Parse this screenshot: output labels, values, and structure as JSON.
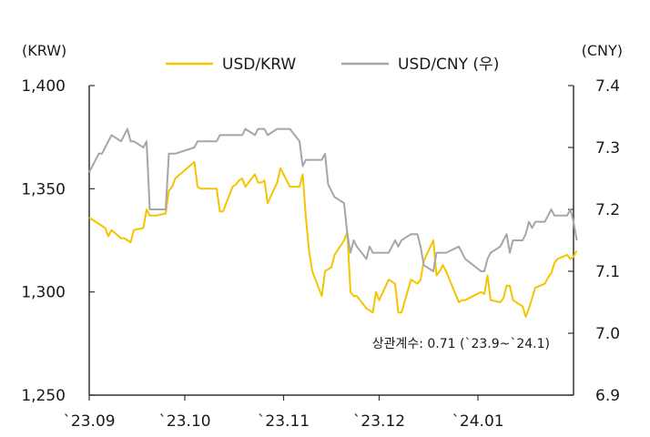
{
  "chart_data": {
    "type": "line",
    "left_axis": {
      "unit": "(KRW)",
      "ylim": [
        1250,
        1400
      ],
      "ticks": [
        1250,
        1300,
        1350,
        1400
      ],
      "tick_labels": [
        "1,250",
        "1,300",
        "1,350",
        "1,400"
      ]
    },
    "right_axis": {
      "unit": "(CNY)",
      "ylim": [
        6.9,
        7.4
      ],
      "ticks": [
        6.9,
        7.0,
        7.1,
        7.2,
        7.3,
        7.4
      ],
      "tick_labels": [
        "6.9",
        "7.0",
        "7.1",
        "7.2",
        "7.3",
        "7.4"
      ]
    },
    "x_tick_labels": [
      "`23.09",
      "`23.10",
      "`23.11",
      "`23.12",
      "`24.01"
    ],
    "x_tick_values": [
      "2023-09-01",
      "2023-10-01",
      "2023-11-01",
      "2023-12-01",
      "2024-01-01"
    ],
    "xlim": [
      "2023-09-01",
      "2024-01-31"
    ],
    "annotation": "상관계수: 0.71 (`23.9~`24.1)",
    "series": [
      {
        "name": "USD/KRW",
        "axis": "left",
        "color": "#f5c400",
        "points": [
          [
            "2023-09-01",
            1336
          ],
          [
            "2023-09-04",
            1333
          ],
          [
            "2023-09-05",
            1332
          ],
          [
            "2023-09-06",
            1331
          ],
          [
            "2023-09-07",
            1327
          ],
          [
            "2023-09-08",
            1330
          ],
          [
            "2023-09-11",
            1326
          ],
          [
            "2023-09-12",
            1326
          ],
          [
            "2023-09-13",
            1325
          ],
          [
            "2023-09-14",
            1324
          ],
          [
            "2023-09-15",
            1330
          ],
          [
            "2023-09-18",
            1331
          ],
          [
            "2023-09-19",
            1340
          ],
          [
            "2023-09-20",
            1337
          ],
          [
            "2023-09-21",
            1337
          ],
          [
            "2023-09-22",
            1337
          ],
          [
            "2023-09-25",
            1338
          ],
          [
            "2023-09-26",
            1349
          ],
          [
            "2023-09-27",
            1351
          ],
          [
            "2023-09-28",
            1355
          ],
          [
            "2023-10-04",
            1363
          ],
          [
            "2023-10-05",
            1351
          ],
          [
            "2023-10-06",
            1350
          ],
          [
            "2023-10-10",
            1350
          ],
          [
            "2023-10-11",
            1350
          ],
          [
            "2023-10-12",
            1339
          ],
          [
            "2023-10-13",
            1339
          ],
          [
            "2023-10-16",
            1351
          ],
          [
            "2023-10-17",
            1352
          ],
          [
            "2023-10-18",
            1354
          ],
          [
            "2023-10-19",
            1355
          ],
          [
            "2023-10-20",
            1351
          ],
          [
            "2023-10-23",
            1357
          ],
          [
            "2023-10-24",
            1353
          ],
          [
            "2023-10-25",
            1353
          ],
          [
            "2023-10-26",
            1354
          ],
          [
            "2023-10-27",
            1343
          ],
          [
            "2023-10-30",
            1353
          ],
          [
            "2023-10-31",
            1360
          ],
          [
            "2023-11-01",
            1357
          ],
          [
            "2023-11-02",
            1354
          ],
          [
            "2023-11-03",
            1351
          ],
          [
            "2023-11-06",
            1351
          ],
          [
            "2023-11-07",
            1357
          ],
          [
            "2023-11-08",
            1336
          ],
          [
            "2023-11-09",
            1320
          ],
          [
            "2023-11-10",
            1310
          ],
          [
            "2023-11-13",
            1298
          ],
          [
            "2023-11-14",
            1310
          ],
          [
            "2023-11-15",
            1311
          ],
          [
            "2023-11-16",
            1312
          ],
          [
            "2023-11-17",
            1318
          ],
          [
            "2023-11-20",
            1325
          ],
          [
            "2023-11-21",
            1329
          ],
          [
            "2023-11-22",
            1300
          ],
          [
            "2023-11-23",
            1298
          ],
          [
            "2023-11-24",
            1298
          ],
          [
            "2023-11-27",
            1292
          ],
          [
            "2023-11-28",
            1291
          ],
          [
            "2023-11-29",
            1290
          ],
          [
            "2023-11-30",
            1300
          ],
          [
            "2023-12-01",
            1296
          ],
          [
            "2023-12-04",
            1306
          ],
          [
            "2023-12-05",
            1305
          ],
          [
            "2023-12-06",
            1304
          ],
          [
            "2023-12-07",
            1290
          ],
          [
            "2023-12-08",
            1290
          ],
          [
            "2023-12-11",
            1306
          ],
          [
            "2023-12-12",
            1305
          ],
          [
            "2023-12-13",
            1304
          ],
          [
            "2023-12-14",
            1306
          ],
          [
            "2023-12-15",
            1315
          ],
          [
            "2023-12-18",
            1325
          ],
          [
            "2023-12-19",
            1308
          ],
          [
            "2023-12-20",
            1310
          ],
          [
            "2023-12-21",
            1313
          ],
          [
            "2023-12-22",
            1310
          ],
          [
            "2023-12-26",
            1295
          ],
          [
            "2023-12-27",
            1296
          ],
          [
            "2023-12-28",
            1296
          ],
          [
            "2024-01-02",
            1300
          ],
          [
            "2024-01-03",
            1299
          ],
          [
            "2024-01-04",
            1308
          ],
          [
            "2024-01-05",
            1296
          ],
          [
            "2024-01-08",
            1295
          ],
          [
            "2024-01-09",
            1297
          ],
          [
            "2024-01-10",
            1303
          ],
          [
            "2024-01-11",
            1303
          ],
          [
            "2024-01-12",
            1296
          ],
          [
            "2024-01-15",
            1293
          ],
          [
            "2024-01-16",
            1288
          ],
          [
            "2024-01-17",
            1292
          ],
          [
            "2024-01-18",
            1297
          ],
          [
            "2024-01-19",
            1302
          ],
          [
            "2024-01-22",
            1304
          ],
          [
            "2024-01-23",
            1307
          ],
          [
            "2024-01-24",
            1309
          ],
          [
            "2024-01-25",
            1314
          ],
          [
            "2024-01-26",
            1316
          ],
          [
            "2024-01-29",
            1318
          ],
          [
            "2024-01-30",
            1316
          ],
          [
            "2024-01-31",
            1317
          ],
          [
            "2024-02-01",
            1320
          ]
        ]
      },
      {
        "name": "USD/CNY (우)",
        "axis": "right",
        "color": "#a6a6a6",
        "points": [
          [
            "2023-09-01",
            7.26
          ],
          [
            "2023-09-04",
            7.29
          ],
          [
            "2023-09-05",
            7.29
          ],
          [
            "2023-09-06",
            7.3
          ],
          [
            "2023-09-07",
            7.31
          ],
          [
            "2023-09-08",
            7.32
          ],
          [
            "2023-09-11",
            7.31
          ],
          [
            "2023-09-12",
            7.32
          ],
          [
            "2023-09-13",
            7.33
          ],
          [
            "2023-09-14",
            7.31
          ],
          [
            "2023-09-15",
            7.31
          ],
          [
            "2023-09-18",
            7.3
          ],
          [
            "2023-09-19",
            7.31
          ],
          [
            "2023-09-20",
            7.2
          ],
          [
            "2023-09-21",
            7.2
          ],
          [
            "2023-09-22",
            7.2
          ],
          [
            "2023-09-25",
            7.2
          ],
          [
            "2023-09-26",
            7.29
          ],
          [
            "2023-09-27",
            7.29
          ],
          [
            "2023-09-28",
            7.29
          ],
          [
            "2023-10-04",
            7.3
          ],
          [
            "2023-10-05",
            7.31
          ],
          [
            "2023-10-06",
            7.31
          ],
          [
            "2023-10-10",
            7.31
          ],
          [
            "2023-10-11",
            7.31
          ],
          [
            "2023-10-12",
            7.32
          ],
          [
            "2023-10-13",
            7.32
          ],
          [
            "2023-10-16",
            7.32
          ],
          [
            "2023-10-17",
            7.32
          ],
          [
            "2023-10-18",
            7.32
          ],
          [
            "2023-10-19",
            7.32
          ],
          [
            "2023-10-20",
            7.33
          ],
          [
            "2023-10-23",
            7.32
          ],
          [
            "2023-10-24",
            7.33
          ],
          [
            "2023-10-25",
            7.33
          ],
          [
            "2023-10-26",
            7.33
          ],
          [
            "2023-10-27",
            7.32
          ],
          [
            "2023-10-30",
            7.33
          ],
          [
            "2023-10-31",
            7.33
          ],
          [
            "2023-11-01",
            7.33
          ],
          [
            "2023-11-02",
            7.33
          ],
          [
            "2023-11-03",
            7.33
          ],
          [
            "2023-11-06",
            7.31
          ],
          [
            "2023-11-07",
            7.27
          ],
          [
            "2023-11-08",
            7.28
          ],
          [
            "2023-11-09",
            7.28
          ],
          [
            "2023-11-10",
            7.28
          ],
          [
            "2023-11-13",
            7.28
          ],
          [
            "2023-11-14",
            7.29
          ],
          [
            "2023-11-15",
            7.24
          ],
          [
            "2023-11-16",
            7.23
          ],
          [
            "2023-11-17",
            7.22
          ],
          [
            "2023-11-20",
            7.21
          ],
          [
            "2023-11-21",
            7.16
          ],
          [
            "2023-11-22",
            7.13
          ],
          [
            "2023-11-23",
            7.15
          ],
          [
            "2023-11-24",
            7.14
          ],
          [
            "2023-11-27",
            7.12
          ],
          [
            "2023-11-28",
            7.14
          ],
          [
            "2023-11-29",
            7.13
          ],
          [
            "2023-11-30",
            7.13
          ],
          [
            "2023-12-01",
            7.13
          ],
          [
            "2023-12-04",
            7.13
          ],
          [
            "2023-12-05",
            7.14
          ],
          [
            "2023-12-06",
            7.15
          ],
          [
            "2023-12-07",
            7.14
          ],
          [
            "2023-12-08",
            7.15
          ],
          [
            "2023-12-11",
            7.16
          ],
          [
            "2023-12-12",
            7.16
          ],
          [
            "2023-12-13",
            7.16
          ],
          [
            "2023-12-14",
            7.14
          ],
          [
            "2023-12-15",
            7.11
          ],
          [
            "2023-12-18",
            7.1
          ],
          [
            "2023-12-19",
            7.13
          ],
          [
            "2023-12-20",
            7.13
          ],
          [
            "2023-12-21",
            7.13
          ],
          [
            "2023-12-22",
            7.13
          ],
          [
            "2023-12-26",
            7.14
          ],
          [
            "2023-12-27",
            7.13
          ],
          [
            "2023-12-28",
            7.12
          ],
          [
            "2024-01-02",
            7.1
          ],
          [
            "2024-01-03",
            7.1
          ],
          [
            "2024-01-04",
            7.12
          ],
          [
            "2024-01-05",
            7.13
          ],
          [
            "2024-01-08",
            7.14
          ],
          [
            "2024-01-09",
            7.15
          ],
          [
            "2024-01-10",
            7.16
          ],
          [
            "2024-01-11",
            7.13
          ],
          [
            "2024-01-12",
            7.15
          ],
          [
            "2024-01-15",
            7.15
          ],
          [
            "2024-01-16",
            7.16
          ],
          [
            "2024-01-17",
            7.18
          ],
          [
            "2024-01-18",
            7.17
          ],
          [
            "2024-01-19",
            7.18
          ],
          [
            "2024-01-22",
            7.18
          ],
          [
            "2024-01-23",
            7.19
          ],
          [
            "2024-01-24",
            7.2
          ],
          [
            "2024-01-25",
            7.19
          ],
          [
            "2024-01-26",
            7.19
          ],
          [
            "2024-01-29",
            7.19
          ],
          [
            "2024-01-30",
            7.2
          ],
          [
            "2024-01-31",
            7.18
          ],
          [
            "2024-02-01",
            7.15
          ]
        ]
      }
    ]
  }
}
